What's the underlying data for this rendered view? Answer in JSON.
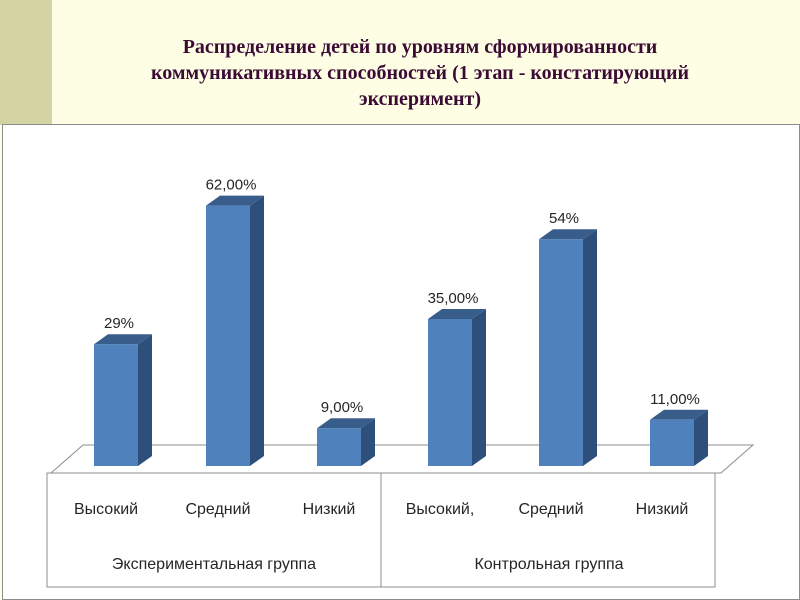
{
  "slide": {
    "title": "Распределение детей по уровням сформированности коммуникативных способностей (1 этап - констатирующий эксперимент)"
  },
  "colors": {
    "bar_front": "#4f81bd",
    "bar_side": "#2f4f7b",
    "bar_top": "#385d8a",
    "title": "#3b0a35"
  },
  "chart_data": {
    "type": "bar",
    "title": "",
    "xlabel": "",
    "ylabel": "",
    "ylim": [
      0,
      70
    ],
    "grid": false,
    "legend": "none",
    "categories": [
      "Высокий",
      "Средний",
      "Низкий",
      "Высокий,",
      "Средний",
      "Низкий"
    ],
    "groups": [
      {
        "label": "Экспериментальная группа",
        "categories": [
          0,
          1,
          2
        ]
      },
      {
        "label": "Контрольная группа",
        "categories": [
          3,
          4,
          5
        ]
      }
    ],
    "values": [
      29,
      62,
      9,
      35,
      54,
      11
    ],
    "data_labels": [
      "29%",
      "62,00%",
      "9,00%",
      "35,00%",
      "54%",
      "11,00%"
    ]
  }
}
